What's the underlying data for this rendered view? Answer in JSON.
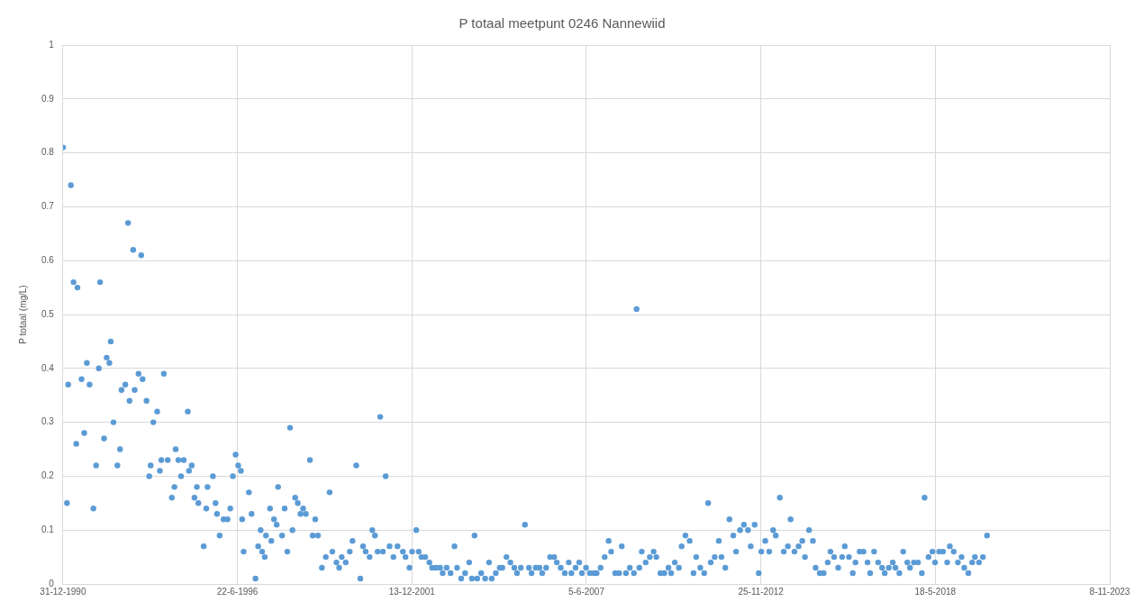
{
  "chart_data": {
    "type": "scatter",
    "title": "P totaal meetpunt 0246 Nannewiid",
    "ylabel": "P totaal (mg/L)",
    "color": "#5b9bd5",
    "marker": "circle",
    "grid": true,
    "legend": false,
    "xlim": [
      "1990-12-31",
      "2023-11-08"
    ],
    "xticks": [
      {
        "value": "1990-12-31",
        "label": "31-12-1990"
      },
      {
        "value": "1996-06-22",
        "label": "22-6-1996"
      },
      {
        "value": "2001-12-13",
        "label": "13-12-2001"
      },
      {
        "value": "2007-06-05",
        "label": "5-6-2007"
      },
      {
        "value": "2012-11-25",
        "label": "25-11-2012"
      },
      {
        "value": "2018-05-18",
        "label": "18-5-2018"
      },
      {
        "value": "2023-11-08",
        "label": "8-11-2023"
      }
    ],
    "ylim": [
      0,
      1
    ],
    "yticks": [
      0,
      0.1,
      0.2,
      0.3,
      0.4,
      0.5,
      0.6,
      0.7,
      0.8,
      0.9,
      1
    ],
    "x": [
      "1991-01-01",
      "1991-02-15",
      "1991-03-01",
      "1991-04-01",
      "1991-05-01",
      "1991-06-01",
      "1991-06-15",
      "1991-08-01",
      "1991-09-01",
      "1991-10-01",
      "1991-11-01",
      "1991-12-15",
      "1992-01-15",
      "1992-02-15",
      "1992-03-01",
      "1992-04-15",
      "1992-05-15",
      "1992-06-15",
      "1992-07-01",
      "1992-08-01",
      "1992-09-15",
      "1992-10-15",
      "1992-11-01",
      "1992-12-15",
      "1993-01-15",
      "1993-02-01",
      "1993-03-15",
      "1993-04-01",
      "1993-05-15",
      "1993-06-15",
      "1993-07-01",
      "1993-08-15",
      "1993-09-15",
      "1993-10-01",
      "1993-11-01",
      "1993-12-15",
      "1994-01-15",
      "1994-02-01",
      "1994-03-01",
      "1994-04-15",
      "1994-06-01",
      "1994-07-01",
      "1994-07-15",
      "1994-08-15",
      "1994-09-15",
      "1994-10-15",
      "1994-12-01",
      "1994-12-15",
      "1995-01-15",
      "1995-02-15",
      "1995-03-15",
      "1995-04-01",
      "1995-06-01",
      "1995-07-01",
      "1995-07-15",
      "1995-09-15",
      "1995-10-15",
      "1995-11-01",
      "1995-12-01",
      "1996-01-15",
      "1996-03-01",
      "1996-04-01",
      "1996-05-01",
      "1996-06-01",
      "1996-07-01",
      "1996-08-01",
      "1996-08-15",
      "1996-09-01",
      "1996-11-01",
      "1996-12-01",
      "1997-01-15",
      "1997-02-15",
      "1997-03-15",
      "1997-04-01",
      "1997-05-01",
      "1997-05-15",
      "1997-07-01",
      "1997-07-15",
      "1997-08-15",
      "1997-09-15",
      "1997-10-01",
      "1997-11-15",
      "1997-12-15",
      "1998-01-15",
      "1998-02-15",
      "1998-03-15",
      "1998-04-15",
      "1998-05-15",
      "1998-06-15",
      "1998-07-15",
      "1998-08-15",
      "1998-10-01",
      "1998-11-01",
      "1998-12-01",
      "1999-01-01",
      "1999-02-15",
      "1999-04-01",
      "1999-05-15",
      "1999-06-15",
      "1999-08-01",
      "1999-09-01",
      "1999-10-01",
      "1999-11-15",
      "2000-01-01",
      "2000-02-01",
      "2000-03-15",
      "2000-05-01",
      "2000-06-01",
      "2000-07-01",
      "2000-08-15",
      "2000-09-15",
      "2000-10-15",
      "2000-11-15",
      "2000-12-15",
      "2001-01-15",
      "2001-02-15",
      "2001-04-01",
      "2001-05-15",
      "2001-07-01",
      "2001-09-01",
      "2001-10-01",
      "2001-11-15",
      "2001-12-15",
      "2002-02-01",
      "2002-03-01",
      "2002-04-01",
      "2002-05-15",
      "2002-07-01",
      "2002-08-01",
      "2002-09-15",
      "2002-11-01",
      "2002-12-01",
      "2003-01-15",
      "2003-03-01",
      "2003-04-15",
      "2003-05-15",
      "2003-07-01",
      "2003-08-15",
      "2003-10-01",
      "2003-11-01",
      "2003-12-01",
      "2004-01-01",
      "2004-02-15",
      "2004-04-01",
      "2004-05-15",
      "2004-06-15",
      "2004-08-01",
      "2004-09-15",
      "2004-10-15",
      "2004-12-01",
      "2005-01-15",
      "2005-03-01",
      "2005-04-01",
      "2005-05-15",
      "2005-07-01",
      "2005-08-15",
      "2005-09-15",
      "2005-11-01",
      "2005-12-15",
      "2006-01-15",
      "2006-03-01",
      "2006-04-15",
      "2006-06-01",
      "2006-07-01",
      "2006-08-15",
      "2006-10-01",
      "2006-11-15",
      "2006-12-15",
      "2007-02-01",
      "2007-03-15",
      "2007-04-15",
      "2007-06-01",
      "2007-07-15",
      "2007-09-01",
      "2007-10-01",
      "2007-11-15",
      "2008-01-01",
      "2008-02-15",
      "2008-03-15",
      "2008-05-01",
      "2008-06-15",
      "2008-07-15",
      "2008-09-01",
      "2008-10-15",
      "2008-12-01",
      "2009-01-01",
      "2009-02-01",
      "2009-03-01",
      "2009-04-15",
      "2009-06-01",
      "2009-07-15",
      "2009-08-15",
      "2009-10-01",
      "2009-11-15",
      "2010-01-01",
      "2010-02-01",
      "2010-03-15",
      "2010-05-01",
      "2010-06-01",
      "2010-07-15",
      "2010-09-01",
      "2010-10-15",
      "2010-11-15",
      "2011-01-01",
      "2011-02-15",
      "2011-04-01",
      "2011-05-01",
      "2011-06-15",
      "2011-08-01",
      "2011-09-01",
      "2011-10-15",
      "2011-12-01",
      "2012-01-15",
      "2012-02-15",
      "2012-04-01",
      "2012-05-15",
      "2012-07-01",
      "2012-08-01",
      "2012-09-15",
      "2012-11-01",
      "2012-12-01",
      "2013-01-15",
      "2013-03-01",
      "2013-04-15",
      "2013-05-15",
      "2013-07-01",
      "2013-08-15",
      "2013-10-01",
      "2013-11-01",
      "2013-12-15",
      "2014-02-01",
      "2014-03-15",
      "2014-04-15",
      "2014-06-01",
      "2014-07-15",
      "2014-08-15",
      "2014-10-01",
      "2014-11-15",
      "2015-01-01",
      "2015-02-01",
      "2015-03-15",
      "2015-05-01",
      "2015-06-15",
      "2015-07-15",
      "2015-09-01",
      "2015-10-15",
      "2015-11-15",
      "2016-01-01",
      "2016-02-15",
      "2016-04-01",
      "2016-05-01",
      "2016-06-15",
      "2016-08-01",
      "2016-09-15",
      "2016-10-15",
      "2016-12-01",
      "2017-01-15",
      "2017-02-15",
      "2017-04-01",
      "2017-05-15",
      "2017-07-01",
      "2017-08-01",
      "2017-09-15",
      "2017-11-01",
      "2017-12-15",
      "2018-01-15",
      "2018-03-01",
      "2018-04-15",
      "2018-05-15",
      "2018-07-01",
      "2018-08-15",
      "2018-10-01",
      "2018-11-01",
      "2018-12-15",
      "2019-02-01",
      "2019-03-15",
      "2019-04-15",
      "2019-06-01",
      "2019-07-15",
      "2019-08-15",
      "2019-10-01",
      "2019-11-15",
      "2020-01-01"
    ],
    "values": [
      0.81,
      0.15,
      0.37,
      0.74,
      0.56,
      0.26,
      0.55,
      0.38,
      0.28,
      0.41,
      0.37,
      0.14,
      0.22,
      0.4,
      0.56,
      0.27,
      0.42,
      0.41,
      0.45,
      0.3,
      0.22,
      0.25,
      0.36,
      0.37,
      0.67,
      0.34,
      0.62,
      0.36,
      0.39,
      0.61,
      0.38,
      0.34,
      0.2,
      0.22,
      0.3,
      0.32,
      0.21,
      0.23,
      0.39,
      0.23,
      0.16,
      0.18,
      0.25,
      0.23,
      0.2,
      0.23,
      0.32,
      0.21,
      0.22,
      0.16,
      0.18,
      0.15,
      0.07,
      0.14,
      0.18,
      0.2,
      0.15,
      0.13,
      0.09,
      0.12,
      0.12,
      0.14,
      0.2,
      0.24,
      0.22,
      0.21,
      0.12,
      0.06,
      0.17,
      0.13,
      0.01,
      0.07,
      0.1,
      0.06,
      0.05,
      0.09,
      0.14,
      0.08,
      0.12,
      0.11,
      0.18,
      0.09,
      0.14,
      0.06,
      0.29,
      0.1,
      0.16,
      0.15,
      0.13,
      0.14,
      0.13,
      0.23,
      0.09,
      0.12,
      0.09,
      0.03,
      0.05,
      0.17,
      0.06,
      0.04,
      0.03,
      0.05,
      0.04,
      0.06,
      0.08,
      0.22,
      0.01,
      0.07,
      0.06,
      0.05,
      0.1,
      0.09,
      0.06,
      0.31,
      0.06,
      0.2,
      0.07,
      0.05,
      0.07,
      0.06,
      0.05,
      0.03,
      0.06,
      0.1,
      0.06,
      0.05,
      0.05,
      0.04,
      0.03,
      0.03,
      0.03,
      0.02,
      0.03,
      0.02,
      0.07,
      0.03,
      0.01,
      0.02,
      0.04,
      0.01,
      0.09,
      0.01,
      0.02,
      0.01,
      0.04,
      0.01,
      0.02,
      0.03,
      0.03,
      0.05,
      0.04,
      0.03,
      0.02,
      0.03,
      0.11,
      0.03,
      0.02,
      0.03,
      0.03,
      0.02,
      0.03,
      0.05,
      0.05,
      0.04,
      0.03,
      0.02,
      0.04,
      0.02,
      0.03,
      0.04,
      0.02,
      0.03,
      0.02,
      0.02,
      0.02,
      0.03,
      0.05,
      0.08,
      0.06,
      0.02,
      0.02,
      0.07,
      0.02,
      0.03,
      0.02,
      0.51,
      0.03,
      0.06,
      0.04,
      0.05,
      0.06,
      0.05,
      0.02,
      0.02,
      0.03,
      0.02,
      0.04,
      0.03,
      0.07,
      0.09,
      0.08,
      0.02,
      0.05,
      0.03,
      0.02,
      0.15,
      0.04,
      0.05,
      0.08,
      0.05,
      0.03,
      0.12,
      0.09,
      0.06,
      0.1,
      0.11,
      0.1,
      0.07,
      0.11,
      0.02,
      0.06,
      0.08,
      0.06,
      0.1,
      0.09,
      0.16,
      0.06,
      0.07,
      0.12,
      0.06,
      0.07,
      0.08,
      0.05,
      0.1,
      0.08,
      0.03,
      0.02,
      0.02,
      0.04,
      0.06,
      0.05,
      0.03,
      0.05,
      0.07,
      0.05,
      0.02,
      0.04,
      0.06,
      0.06,
      0.04,
      0.02,
      0.06,
      0.04,
      0.03,
      0.02,
      0.03,
      0.04,
      0.03,
      0.02,
      0.06,
      0.04,
      0.03,
      0.04,
      0.04,
      0.02,
      0.16,
      0.05,
      0.06,
      0.04,
      0.06,
      0.06,
      0.04,
      0.07,
      0.06,
      0.04,
      0.05,
      0.03,
      0.02,
      0.04,
      0.05,
      0.04,
      0.05,
      0.09
    ]
  }
}
